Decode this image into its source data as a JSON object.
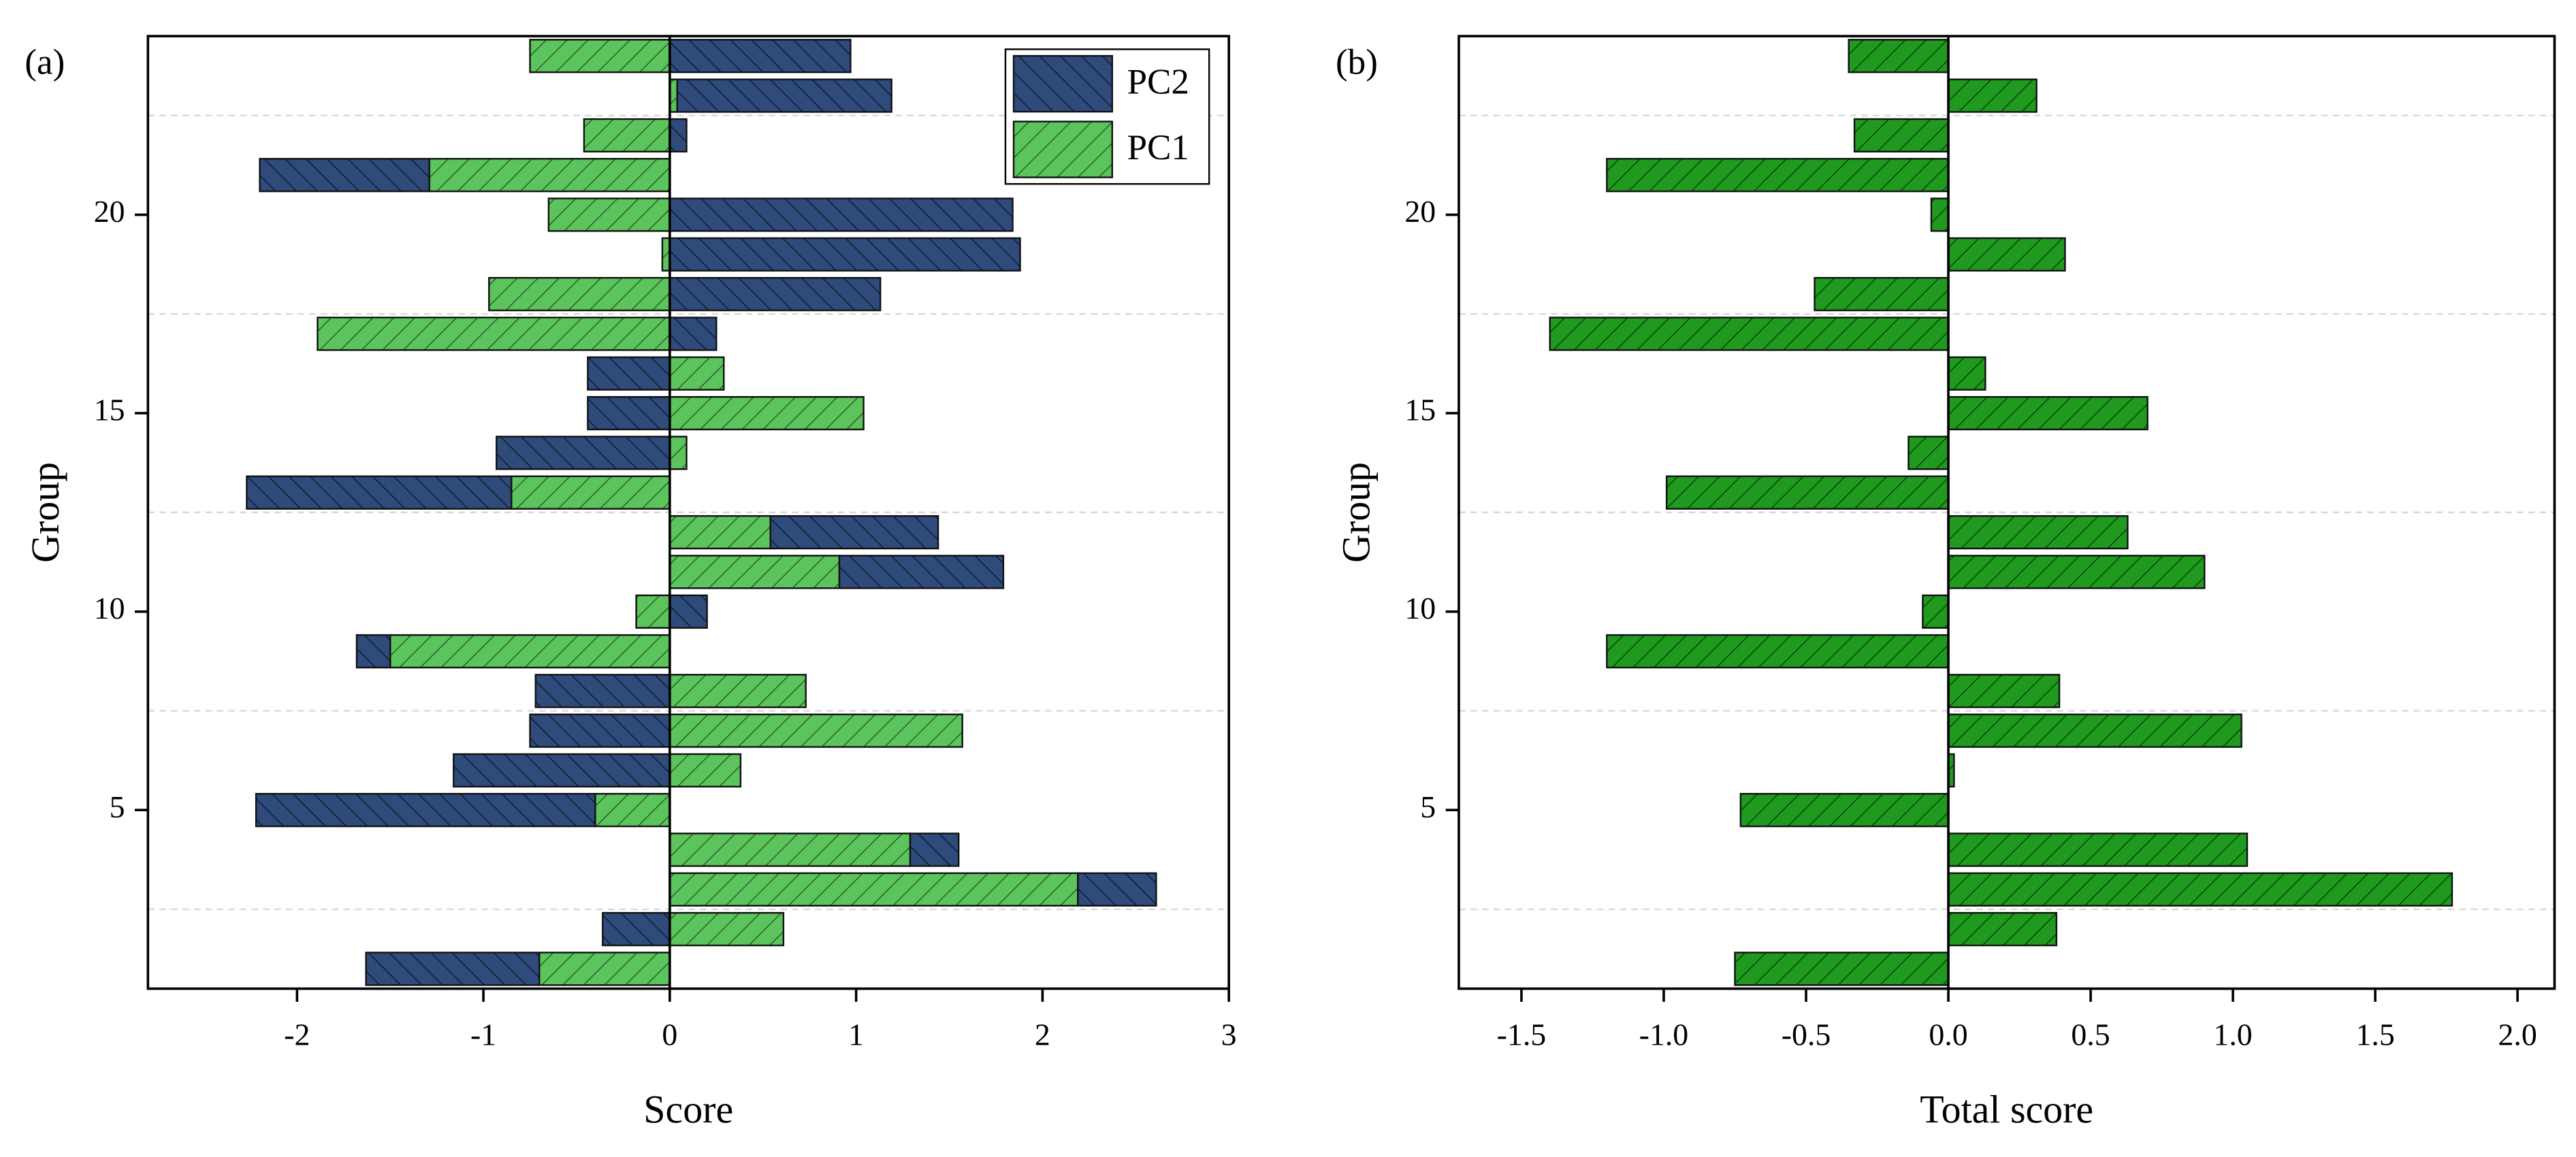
{
  "chart_data": [
    {
      "type": "stacked_bar",
      "orientation": "horizontal",
      "panel_label": "(a)",
      "xlabel": "Score",
      "ylabel": "Group",
      "y": [
        1,
        2,
        3,
        4,
        5,
        6,
        7,
        8,
        9,
        10,
        11,
        12,
        13,
        14,
        15,
        16,
        17,
        18,
        19,
        20,
        21,
        22,
        23,
        24
      ],
      "series": [
        {
          "name": "PC1",
          "color": "#5cc45c",
          "values": [
            -0.7,
            0.61,
            2.19,
            1.29,
            -0.4,
            0.38,
            1.57,
            0.73,
            -1.5,
            -0.18,
            0.91,
            0.54,
            -0.85,
            0.09,
            1.04,
            0.29,
            -1.89,
            -0.97,
            -0.04,
            -0.65,
            -1.29,
            -0.46,
            0.04,
            -0.75
          ]
        },
        {
          "name": "PC2",
          "color": "#2f4b7c",
          "values": [
            -0.93,
            -0.36,
            0.42,
            0.26,
            -1.82,
            -1.16,
            -0.75,
            -0.72,
            -0.18,
            0.2,
            0.88,
            0.9,
            -1.42,
            -0.93,
            -0.44,
            -0.44,
            0.25,
            1.13,
            1.88,
            1.84,
            -0.91,
            0.09,
            1.15,
            0.97
          ]
        }
      ],
      "xlim": [
        -2.8,
        3
      ],
      "xticks": [
        -2,
        -1,
        0,
        1,
        2,
        3
      ],
      "ylim": [
        0.5,
        24.5
      ],
      "yticks": [
        5,
        10,
        15,
        20
      ],
      "grid_lines": [
        2.5,
        7.5,
        12.5,
        17.5,
        22.5
      ],
      "legend": "upper right"
    },
    {
      "type": "bar",
      "orientation": "horizontal",
      "panel_label": "(b)",
      "xlabel": "Total score",
      "ylabel": "Group",
      "y": [
        1,
        2,
        3,
        4,
        5,
        6,
        7,
        8,
        9,
        10,
        11,
        12,
        13,
        14,
        15,
        16,
        17,
        18,
        19,
        20,
        21,
        22,
        23,
        24
      ],
      "color": "#1f9a1f",
      "values": [
        -0.75,
        0.38,
        1.77,
        1.05,
        -0.73,
        0.02,
        1.03,
        0.39,
        -1.2,
        -0.09,
        0.9,
        0.63,
        -0.99,
        -0.14,
        0.7,
        0.13,
        -1.4,
        -0.47,
        0.41,
        -0.06,
        -1.2,
        -0.33,
        0.31,
        -0.35
      ],
      "xlim": [
        -1.72,
        2.13
      ],
      "xticks": [
        -1.5,
        {
          "value": -1,
          "label": "-1.0"
        },
        -0.5,
        {
          "value": 0,
          "label": "0.0"
        },
        0.5,
        {
          "value": 1,
          "label": "1.0"
        },
        1.5,
        {
          "value": 2,
          "label": "2.0"
        }
      ],
      "ylim": [
        0.5,
        24.5
      ],
      "yticks": [
        5,
        10,
        15,
        20
      ],
      "grid_lines": [
        2.5,
        7.5,
        12.5,
        17.5,
        22.5
      ]
    }
  ]
}
